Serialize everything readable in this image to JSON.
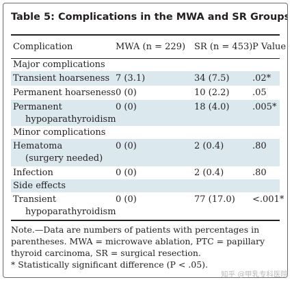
{
  "title": "Table 5: Complications in the MWA and SR Groups",
  "columns": {
    "complication": "Complication",
    "mwa": "MWA (n = 229)",
    "sr": "SR (n = 453)",
    "p": "P Value"
  },
  "rows": [
    {
      "label": "Major complications",
      "mwa": "",
      "sr": "",
      "p": "",
      "section": true,
      "shaded": false
    },
    {
      "label": "Transient hoarseness",
      "mwa": "7 (3.1)",
      "sr": "34 (7.5)",
      "p": ".02*",
      "shaded": true
    },
    {
      "label": "Permanent hoarseness",
      "mwa": "0 (0)",
      "sr": "10 (2.2)",
      "p": ".05",
      "shaded": false
    },
    {
      "label": "Permanent",
      "label2": "hypoparathyroidism",
      "mwa": "0 (0)",
      "sr": "18 (4.0)",
      "p": ".005*",
      "shaded": true
    },
    {
      "label": "Minor complications",
      "mwa": "",
      "sr": "",
      "p": "",
      "section": true,
      "shaded": false
    },
    {
      "label": "Hematoma",
      "label2": "(surgery needed)",
      "mwa": "0 (0)",
      "sr": "2 (0.4)",
      "p": ".80",
      "shaded": true
    },
    {
      "label": "Infection",
      "mwa": "0 (0)",
      "sr": "2 (0.4)",
      "p": ".80",
      "shaded": false
    },
    {
      "label": "Side effects",
      "mwa": "",
      "sr": "",
      "p": "",
      "section": true,
      "shaded": true
    },
    {
      "label": "Transient",
      "label2": "hypoparathyroidism",
      "mwa": "0 (0)",
      "sr": "77 (17.0)",
      "p": "<.001*",
      "shaded": false
    }
  ],
  "notes": {
    "line1": "Note.—Data are numbers of patients with percentages in",
    "line2": "parentheses. MWA = microwave ablation, PTC = papillary",
    "line3": "thyroid carcinoma, SR = surgical resection.",
    "line4": "* Statistically significant difference (P < .05)."
  },
  "watermark": "知乎 @甲乳专科医院"
}
